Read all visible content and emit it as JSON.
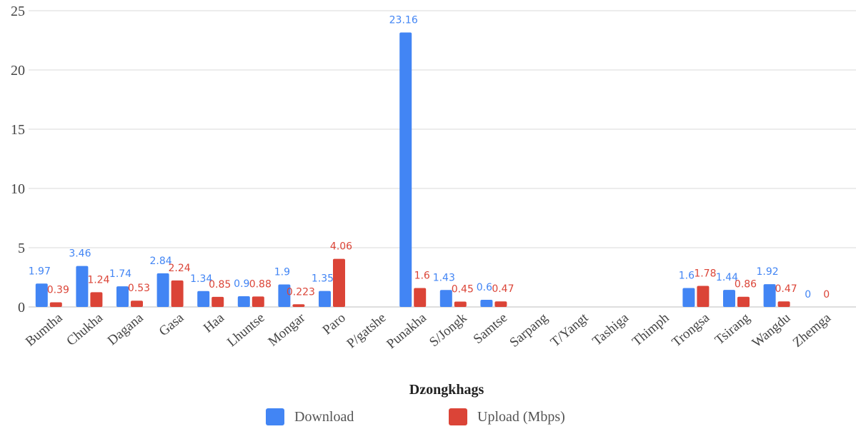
{
  "chart_data": {
    "type": "bar",
    "title": "",
    "xlabel": "Dzongkhags",
    "ylabel": "",
    "ylim": [
      0,
      25
    ],
    "yticks": [
      0,
      5,
      10,
      15,
      20,
      25
    ],
    "grid": true,
    "legend_position": "bottom",
    "categories": [
      "Bumtha",
      "Chukha",
      "Dagana",
      "Gasa",
      "Haa",
      "Lhuntse",
      "Mongar",
      "Paro",
      "P/gatshe",
      "Punakha",
      "S/Jongk",
      "Samtse",
      "Sarpang",
      "T/Yangt",
      "Tashiga",
      "Thimph",
      "Trongsa",
      "Tsirang",
      "Wangdu",
      "Zhemga"
    ],
    "series": [
      {
        "name": "Download",
        "color": "#4285f4",
        "values": [
          1.97,
          3.46,
          1.74,
          2.84,
          1.34,
          0.9,
          1.9,
          1.35,
          null,
          23.16,
          1.43,
          0.6,
          null,
          null,
          null,
          null,
          1.6,
          1.44,
          1.92,
          0
        ],
        "labels": [
          "1.97",
          "3.46",
          "1.74",
          "2.84",
          "1.34",
          "0.9",
          "1.9",
          "1.35",
          "",
          "23.16",
          "1.43",
          "0.6",
          "",
          "",
          "",
          "",
          "1.6",
          "1.44",
          "1.92",
          "0"
        ]
      },
      {
        "name": "Upload (Mbps)",
        "color": "#db4437",
        "values": [
          0.39,
          1.24,
          0.53,
          2.24,
          0.85,
          0.88,
          0.223,
          4.06,
          null,
          1.6,
          0.45,
          0.47,
          null,
          null,
          null,
          null,
          1.78,
          0.86,
          0.47,
          0
        ],
        "labels": [
          "0.39",
          "1.24",
          "0.53",
          "2.24",
          "0.85",
          "0.88",
          "0.223",
          "4.06",
          "",
          "1.6",
          "0.45",
          "0.47",
          "",
          "",
          "",
          "",
          "1.78",
          "0.86",
          "0.47",
          "0"
        ]
      }
    ]
  }
}
